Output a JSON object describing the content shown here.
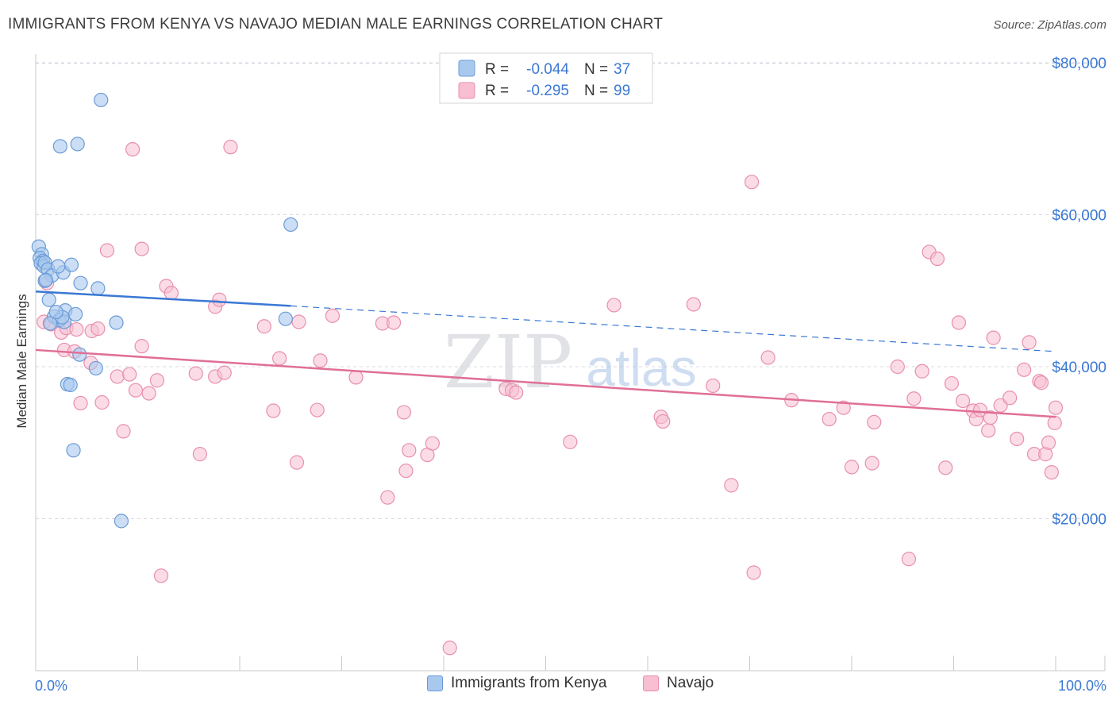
{
  "header": {
    "title": "IMMIGRANTS FROM KENYA VS NAVAJO MEDIAN MALE EARNINGS CORRELATION CHART",
    "source": "Source: ZipAtlas.com"
  },
  "watermark": {
    "zip": "ZIP",
    "atlas": "atlas"
  },
  "legend_box": {
    "rows": [
      {
        "r_label": "R =",
        "r_value": "-0.044",
        "n_label": "N =",
        "n_value": "37"
      },
      {
        "r_label": "R =",
        "r_value": "-0.295",
        "n_label": "N =",
        "n_value": "99"
      }
    ]
  },
  "colors": {
    "kenya_fill": "#a9c8ee",
    "kenya_stroke": "#6b9bd6",
    "kenya_line": "#3a78d4",
    "navajo_fill": "#f7bfd1",
    "navajo_stroke": "#e88fae",
    "navajo_line": "#e06f97",
    "accent_blue": "#3a78d4",
    "grid": "#d9d9e3"
  },
  "chart_data": {
    "type": "scatter",
    "title": "IMMIGRANTS FROM KENYA VS NAVAJO MEDIAN MALE EARNINGS CORRELATION CHART",
    "xlabel": "",
    "ylabel": "Median Male Earnings",
    "xlim": [
      0,
      100
    ],
    "ylim": [
      0,
      80000
    ],
    "x_tick_labels": [
      "0.0%",
      "100.0%"
    ],
    "y_tick_labels": [
      "$20,000",
      "$40,000",
      "$60,000",
      "$80,000"
    ],
    "y_tick_values": [
      20000,
      40000,
      60000,
      80000
    ],
    "legend": [
      "Immigrants from Kenya",
      "Navajo"
    ],
    "series": [
      {
        "name": "Immigrants from Kenya",
        "r": -0.044,
        "n": 37,
        "trend": {
          "x_start": 0,
          "y_start": 49900,
          "x_solid_end": 25,
          "y_solid_end": 48000,
          "x_end": 100,
          "y_end": 42000
        },
        "points": [
          [
            0.3,
            55800
          ],
          [
            0.6,
            54800
          ],
          [
            0.4,
            54300
          ],
          [
            0.7,
            53900
          ],
          [
            0.5,
            53600
          ],
          [
            0.8,
            53200
          ],
          [
            0.9,
            53700
          ],
          [
            1.2,
            52800
          ],
          [
            1.6,
            52000
          ],
          [
            2.7,
            52400
          ],
          [
            3.5,
            53400
          ],
          [
            2.2,
            53200
          ],
          [
            0.9,
            51300
          ],
          [
            4.4,
            51000
          ],
          [
            6.1,
            50300
          ],
          [
            1.3,
            48800
          ],
          [
            2.9,
            47400
          ],
          [
            3.9,
            46900
          ],
          [
            1.8,
            46600
          ],
          [
            2.3,
            46100
          ],
          [
            2.8,
            45900
          ],
          [
            2.6,
            46500
          ],
          [
            1.4,
            45700
          ],
          [
            7.9,
            45800
          ],
          [
            24.5,
            46300
          ],
          [
            25.0,
            58700
          ],
          [
            6.4,
            75100
          ],
          [
            2.4,
            69000
          ],
          [
            4.1,
            69300
          ],
          [
            5.9,
            39800
          ],
          [
            4.3,
            41600
          ],
          [
            3.1,
            37700
          ],
          [
            3.4,
            37600
          ],
          [
            3.7,
            29000
          ],
          [
            8.4,
            19700
          ],
          [
            2.0,
            47200
          ],
          [
            1.0,
            51400
          ]
        ]
      },
      {
        "name": "Navajo",
        "r": -0.295,
        "n": 99,
        "trend": {
          "x_start": 0,
          "y_start": 42200,
          "x_end": 100,
          "y_end": 33400
        },
        "points": [
          [
            0.8,
            45900
          ],
          [
            1.5,
            45600
          ],
          [
            2.5,
            44500
          ],
          [
            2.8,
            42200
          ],
          [
            3.0,
            45100
          ],
          [
            4.0,
            44900
          ],
          [
            3.8,
            42000
          ],
          [
            5.5,
            44700
          ],
          [
            6.1,
            45000
          ],
          [
            5.4,
            40500
          ],
          [
            6.5,
            35300
          ],
          [
            4.4,
            35200
          ],
          [
            1.1,
            51000
          ],
          [
            7.0,
            55300
          ],
          [
            10.4,
            55500
          ],
          [
            9.5,
            68600
          ],
          [
            8.0,
            38700
          ],
          [
            9.2,
            39000
          ],
          [
            9.8,
            36900
          ],
          [
            10.4,
            42700
          ],
          [
            11.1,
            36500
          ],
          [
            11.9,
            38200
          ],
          [
            12.8,
            50600
          ],
          [
            13.3,
            49700
          ],
          [
            12.3,
            12500
          ],
          [
            8.6,
            31500
          ],
          [
            15.7,
            39100
          ],
          [
            16.1,
            28500
          ],
          [
            17.6,
            47900
          ],
          [
            18.0,
            48800
          ],
          [
            17.6,
            38700
          ],
          [
            18.5,
            39200
          ],
          [
            19.1,
            68900
          ],
          [
            22.4,
            45300
          ],
          [
            23.9,
            41100
          ],
          [
            23.3,
            34200
          ],
          [
            25.8,
            45900
          ],
          [
            25.6,
            27400
          ],
          [
            27.6,
            34300
          ],
          [
            27.9,
            40800
          ],
          [
            29.1,
            46700
          ],
          [
            31.4,
            38600
          ],
          [
            34.0,
            45700
          ],
          [
            35.1,
            45800
          ],
          [
            36.1,
            34000
          ],
          [
            36.6,
            29000
          ],
          [
            36.3,
            26300
          ],
          [
            34.5,
            22800
          ],
          [
            38.4,
            28400
          ],
          [
            38.9,
            29900
          ],
          [
            40.6,
            3000
          ],
          [
            46.1,
            37100
          ],
          [
            46.7,
            36900
          ],
          [
            47.1,
            36600
          ],
          [
            52.4,
            30100
          ],
          [
            56.7,
            48100
          ],
          [
            61.3,
            33400
          ],
          [
            61.5,
            32800
          ],
          [
            64.5,
            48200
          ],
          [
            66.4,
            37500
          ],
          [
            68.2,
            24400
          ],
          [
            70.2,
            64300
          ],
          [
            70.4,
            12900
          ],
          [
            71.8,
            41200
          ],
          [
            74.1,
            35600
          ],
          [
            77.8,
            33100
          ],
          [
            79.2,
            34600
          ],
          [
            80.0,
            26800
          ],
          [
            82.0,
            27300
          ],
          [
            82.2,
            32700
          ],
          [
            84.5,
            40000
          ],
          [
            85.6,
            14700
          ],
          [
            86.1,
            35800
          ],
          [
            86.9,
            39400
          ],
          [
            87.6,
            55100
          ],
          [
            88.4,
            54200
          ],
          [
            89.2,
            26700
          ],
          [
            89.8,
            37800
          ],
          [
            90.5,
            45800
          ],
          [
            90.9,
            35500
          ],
          [
            91.9,
            34200
          ],
          [
            92.2,
            33100
          ],
          [
            92.6,
            34300
          ],
          [
            93.4,
            31600
          ],
          [
            93.9,
            43800
          ],
          [
            93.6,
            33300
          ],
          [
            94.6,
            34900
          ],
          [
            95.5,
            35900
          ],
          [
            96.2,
            30500
          ],
          [
            96.9,
            39600
          ],
          [
            97.4,
            43200
          ],
          [
            97.9,
            28500
          ],
          [
            98.4,
            38100
          ],
          [
            99.0,
            28500
          ],
          [
            99.6,
            26100
          ],
          [
            99.3,
            30000
          ],
          [
            99.9,
            32600
          ],
          [
            98.6,
            37900
          ],
          [
            100.0,
            34600
          ]
        ]
      }
    ]
  },
  "x_axis": {
    "min_label": "0.0%",
    "max_label": "100.0%"
  },
  "y_axis": {
    "label": "Median Male Earnings"
  },
  "bottom_legend": {
    "kenya_label": "Immigrants from Kenya",
    "navajo_label": "Navajo"
  }
}
